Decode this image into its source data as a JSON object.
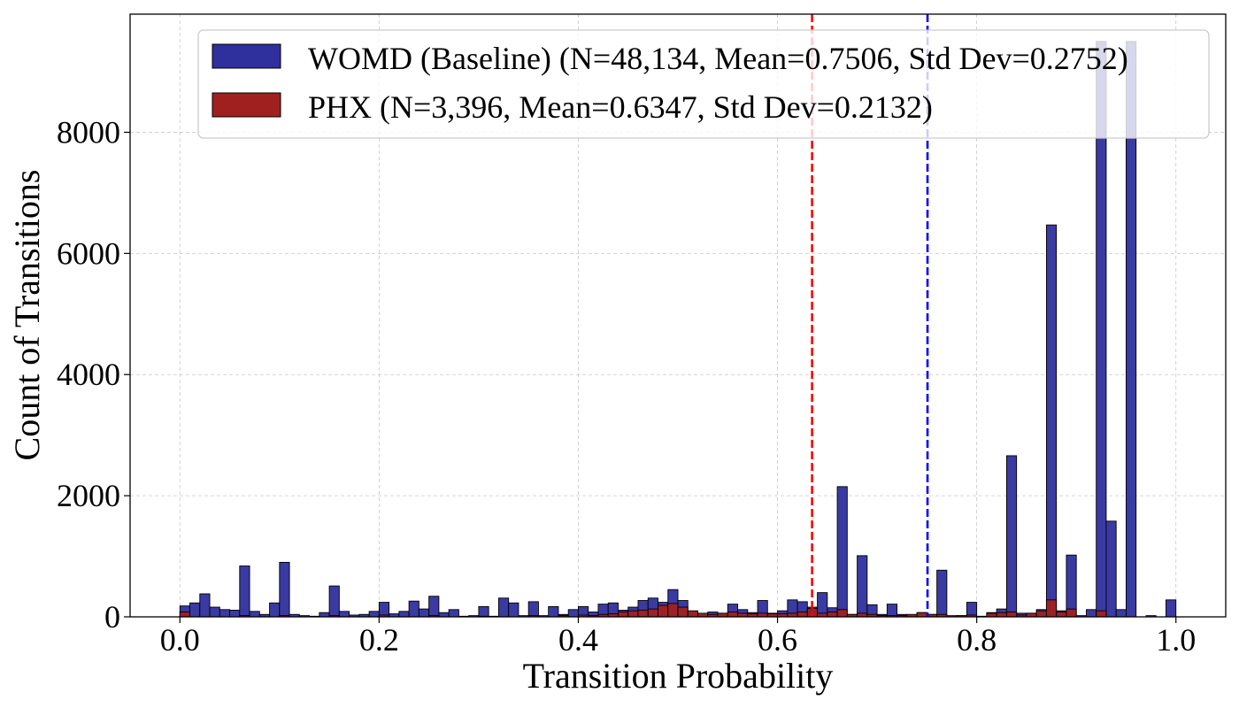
{
  "chart_data": {
    "type": "histogram",
    "xlabel": "Transition Probability",
    "ylabel": "Count of Transitions",
    "xlim": [
      -0.05,
      1.05
    ],
    "ylim": [
      0,
      9950
    ],
    "xticks": [
      0.0,
      0.2,
      0.4,
      0.6,
      0.8,
      1.0
    ],
    "xtick_labels": [
      "0.0",
      "0.2",
      "0.4",
      "0.6",
      "0.8",
      "1.0"
    ],
    "yticks": [
      0,
      2000,
      4000,
      6000,
      8000
    ],
    "ytick_labels": [
      "0",
      "2000",
      "4000",
      "6000",
      "8000"
    ],
    "grid": true,
    "legend_position": "upper right",
    "bin_width": 0.01,
    "series": [
      {
        "name": "WOMD (Baseline) (N=48,134, Mean=0.7506, Std Dev=0.2752)",
        "color": "#2f2f9e",
        "mean": 0.7506,
        "bins": [
          [
            0.0,
            180
          ],
          [
            0.01,
            230
          ],
          [
            0.02,
            380
          ],
          [
            0.03,
            160
          ],
          [
            0.04,
            120
          ],
          [
            0.05,
            110
          ],
          [
            0.06,
            840
          ],
          [
            0.07,
            90
          ],
          [
            0.08,
            40
          ],
          [
            0.09,
            230
          ],
          [
            0.1,
            900
          ],
          [
            0.11,
            40
          ],
          [
            0.12,
            20
          ],
          [
            0.13,
            10
          ],
          [
            0.14,
            70
          ],
          [
            0.15,
            510
          ],
          [
            0.16,
            90
          ],
          [
            0.17,
            30
          ],
          [
            0.18,
            40
          ],
          [
            0.19,
            90
          ],
          [
            0.2,
            240
          ],
          [
            0.21,
            50
          ],
          [
            0.22,
            90
          ],
          [
            0.23,
            260
          ],
          [
            0.24,
            130
          ],
          [
            0.25,
            340
          ],
          [
            0.26,
            70
          ],
          [
            0.27,
            120
          ],
          [
            0.28,
            10
          ],
          [
            0.29,
            20
          ],
          [
            0.3,
            170
          ],
          [
            0.31,
            10
          ],
          [
            0.32,
            310
          ],
          [
            0.33,
            230
          ],
          [
            0.34,
            20
          ],
          [
            0.35,
            250
          ],
          [
            0.36,
            20
          ],
          [
            0.37,
            170
          ],
          [
            0.38,
            40
          ],
          [
            0.39,
            120
          ],
          [
            0.4,
            170
          ],
          [
            0.41,
            80
          ],
          [
            0.42,
            210
          ],
          [
            0.43,
            230
          ],
          [
            0.44,
            110
          ],
          [
            0.45,
            160
          ],
          [
            0.46,
            270
          ],
          [
            0.47,
            310
          ],
          [
            0.48,
            240
          ],
          [
            0.49,
            450
          ],
          [
            0.5,
            270
          ],
          [
            0.51,
            90
          ],
          [
            0.52,
            40
          ],
          [
            0.53,
            80
          ],
          [
            0.54,
            60
          ],
          [
            0.55,
            210
          ],
          [
            0.56,
            120
          ],
          [
            0.57,
            70
          ],
          [
            0.58,
            270
          ],
          [
            0.59,
            60
          ],
          [
            0.6,
            100
          ],
          [
            0.61,
            280
          ],
          [
            0.62,
            250
          ],
          [
            0.63,
            160
          ],
          [
            0.64,
            400
          ],
          [
            0.65,
            150
          ],
          [
            0.66,
            2150
          ],
          [
            0.67,
            40
          ],
          [
            0.68,
            1010
          ],
          [
            0.69,
            200
          ],
          [
            0.7,
            40
          ],
          [
            0.71,
            210
          ],
          [
            0.72,
            40
          ],
          [
            0.73,
            20
          ],
          [
            0.74,
            70
          ],
          [
            0.75,
            40
          ],
          [
            0.76,
            770
          ],
          [
            0.77,
            10
          ],
          [
            0.78,
            20
          ],
          [
            0.79,
            240
          ],
          [
            0.8,
            10
          ],
          [
            0.81,
            70
          ],
          [
            0.82,
            130
          ],
          [
            0.83,
            2660
          ],
          [
            0.84,
            60
          ],
          [
            0.85,
            60
          ],
          [
            0.86,
            120
          ],
          [
            0.87,
            6470
          ],
          [
            0.88,
            100
          ],
          [
            0.89,
            1020
          ],
          [
            0.9,
            20
          ],
          [
            0.91,
            120
          ],
          [
            0.92,
            9500
          ],
          [
            0.93,
            1580
          ],
          [
            0.94,
            120
          ],
          [
            0.95,
            9500
          ],
          [
            0.97,
            20
          ],
          [
            0.99,
            280
          ]
        ]
      },
      {
        "name": "PHX (N=3,396, Mean=0.6347, Std Dev=0.2132)",
        "color": "#a02020",
        "mean": 0.6347,
        "bins": [
          [
            0.0,
            80
          ],
          [
            0.06,
            20
          ],
          [
            0.1,
            20
          ],
          [
            0.15,
            20
          ],
          [
            0.2,
            30
          ],
          [
            0.25,
            20
          ],
          [
            0.3,
            10
          ],
          [
            0.35,
            20
          ],
          [
            0.38,
            20
          ],
          [
            0.4,
            30
          ],
          [
            0.41,
            20
          ],
          [
            0.42,
            40
          ],
          [
            0.43,
            50
          ],
          [
            0.44,
            80
          ],
          [
            0.45,
            100
          ],
          [
            0.46,
            110
          ],
          [
            0.47,
            130
          ],
          [
            0.48,
            190
          ],
          [
            0.49,
            220
          ],
          [
            0.5,
            160
          ],
          [
            0.51,
            100
          ],
          [
            0.52,
            60
          ],
          [
            0.53,
            40
          ],
          [
            0.54,
            60
          ],
          [
            0.55,
            80
          ],
          [
            0.56,
            60
          ],
          [
            0.57,
            50
          ],
          [
            0.58,
            60
          ],
          [
            0.59,
            50
          ],
          [
            0.6,
            50
          ],
          [
            0.61,
            60
          ],
          [
            0.62,
            80
          ],
          [
            0.63,
            140
          ],
          [
            0.64,
            60
          ],
          [
            0.65,
            80
          ],
          [
            0.66,
            120
          ],
          [
            0.67,
            40
          ],
          [
            0.68,
            60
          ],
          [
            0.69,
            40
          ],
          [
            0.7,
            20
          ],
          [
            0.71,
            20
          ],
          [
            0.72,
            20
          ],
          [
            0.73,
            40
          ],
          [
            0.74,
            70
          ],
          [
            0.75,
            40
          ],
          [
            0.76,
            40
          ],
          [
            0.77,
            20
          ],
          [
            0.78,
            20
          ],
          [
            0.79,
            30
          ],
          [
            0.81,
            60
          ],
          [
            0.82,
            70
          ],
          [
            0.83,
            80
          ],
          [
            0.84,
            30
          ],
          [
            0.85,
            60
          ],
          [
            0.86,
            100
          ],
          [
            0.87,
            280
          ],
          [
            0.88,
            80
          ],
          [
            0.89,
            130
          ],
          [
            0.92,
            100
          ]
        ]
      }
    ]
  }
}
